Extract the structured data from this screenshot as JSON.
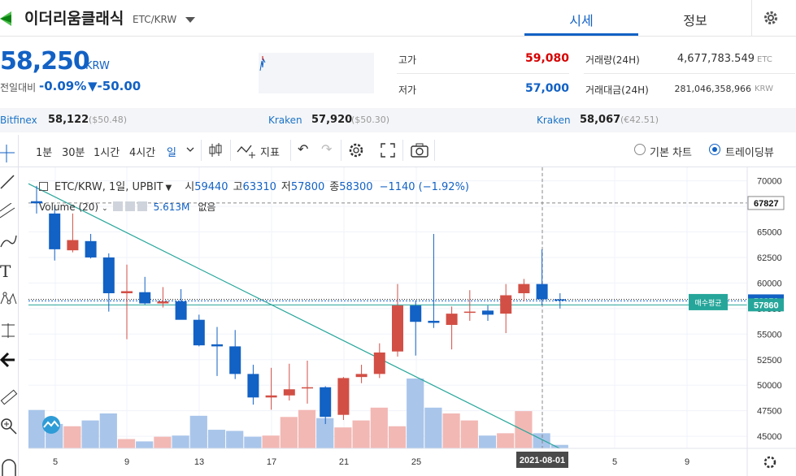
{
  "header": {
    "coin_name": "이더리움클래식",
    "pair": "ETC/KRW",
    "tabs": [
      {
        "label": "시세"
      },
      {
        "label": "정보"
      }
    ]
  },
  "ticker": {
    "price": "58,250",
    "unit": "KRW",
    "change_label": "전일대비",
    "change_rate": "-0.09%",
    "change_amount": "▼-50.00",
    "high_label": "고가",
    "high_value": "59,080",
    "low_label": "저가",
    "low_value": "57,000",
    "volume_label": "거래량(24H)",
    "volume_value": "4,677,783.549",
    "volume_unit": "ETC",
    "amount_label": "거래대금(24H)",
    "amount_value": "281,046,358,966",
    "amount_unit": "KRW"
  },
  "exchanges": [
    {
      "name": "Bitfinex",
      "value": "58,122",
      "usd": "($50.48)"
    },
    {
      "name": "Kraken",
      "value": "57,920",
      "usd": "($50.30)"
    },
    {
      "name": "Kraken",
      "value": "58,067",
      "usd": "(€42.51)"
    }
  ],
  "toolbar": {
    "intervals": [
      "1분",
      "30분",
      "1시간",
      "4시간",
      "일"
    ],
    "indicator_label": "지표",
    "basic_chart": "기본 차트",
    "trading_view": "트레이딩뷰"
  },
  "legend": {
    "title": "ETC/KRW, 1일, UPBIT",
    "open_label": "시",
    "open": "59440",
    "high_label": "고",
    "high": "63310",
    "low_label": "저",
    "low": "57800",
    "close_label": "종",
    "close": "58300",
    "change": "−1140 (−1.92%)",
    "volume_label": "Volume (20)",
    "volume_value": "5.613M",
    "volume_extra": "없음"
  },
  "chart_data": {
    "type": "candlestick",
    "x_labels": [
      "5",
      "9",
      "13",
      "17",
      "21",
      "25",
      "2021-08-01",
      "5",
      "9"
    ],
    "y_ticks": [
      45000,
      47500,
      50000,
      52500,
      55000,
      57500,
      60000,
      62500,
      65000,
      67500,
      70000
    ],
    "ylim": [
      43500,
      71000
    ],
    "price_tags": [
      {
        "value": "67827",
        "color": "#ffffff"
      },
      {
        "value": "58250",
        "color": "#1261c4"
      },
      {
        "value": "57860",
        "color": "#26a69a"
      }
    ],
    "avg_label": "매수평균",
    "candles": [
      {
        "o": 68000,
        "h": 69500,
        "l": 66800,
        "c": 67800
      },
      {
        "o": 66800,
        "h": 67500,
        "l": 62200,
        "c": 63300
      },
      {
        "o": 63200,
        "h": 66800,
        "l": 63000,
        "c": 64200
      },
      {
        "o": 64100,
        "h": 64800,
        "l": 62400,
        "c": 62500
      },
      {
        "o": 62500,
        "h": 62900,
        "l": 57200,
        "c": 59000
      },
      {
        "o": 59000,
        "h": 61800,
        "l": 54500,
        "c": 59200
      },
      {
        "o": 59100,
        "h": 60600,
        "l": 57900,
        "c": 58000
      },
      {
        "o": 58000,
        "h": 59600,
        "l": 57600,
        "c": 58200
      },
      {
        "o": 58200,
        "h": 59400,
        "l": 56500,
        "c": 56400
      },
      {
        "o": 56400,
        "h": 56900,
        "l": 53800,
        "c": 53900
      },
      {
        "o": 54000,
        "h": 55700,
        "l": 50900,
        "c": 53800
      },
      {
        "o": 53800,
        "h": 55400,
        "l": 50600,
        "c": 51100
      },
      {
        "o": 51100,
        "h": 52000,
        "l": 48100,
        "c": 48800
      },
      {
        "o": 48800,
        "h": 51700,
        "l": 47600,
        "c": 49000
      },
      {
        "o": 49000,
        "h": 52100,
        "l": 48500,
        "c": 49600
      },
      {
        "o": 49700,
        "h": 52400,
        "l": 48200,
        "c": 49800
      },
      {
        "o": 49800,
        "h": 49900,
        "l": 46200,
        "c": 46900
      },
      {
        "o": 47100,
        "h": 50800,
        "l": 46600,
        "c": 50700
      },
      {
        "o": 50800,
        "h": 52000,
        "l": 50200,
        "c": 51100
      },
      {
        "o": 51100,
        "h": 54100,
        "l": 50700,
        "c": 53200
      },
      {
        "o": 53300,
        "h": 59900,
        "l": 52800,
        "c": 57800
      },
      {
        "o": 57800,
        "h": 58300,
        "l": 52900,
        "c": 56200
      },
      {
        "o": 56300,
        "h": 64800,
        "l": 55600,
        "c": 56100
      },
      {
        "o": 55900,
        "h": 57700,
        "l": 53500,
        "c": 57000
      },
      {
        "o": 57100,
        "h": 59300,
        "l": 56300,
        "c": 57200
      },
      {
        "o": 57300,
        "h": 57800,
        "l": 56300,
        "c": 56900
      },
      {
        "o": 57000,
        "h": 59900,
        "l": 55100,
        "c": 58800
      },
      {
        "o": 59000,
        "h": 60400,
        "l": 58200,
        "c": 59900
      },
      {
        "o": 59900,
        "h": 63300,
        "l": 57800,
        "c": 58400
      },
      {
        "o": 58400,
        "h": 59000,
        "l": 57500,
        "c": 58300
      }
    ],
    "volumes": [
      3.3,
      2.1,
      1.9,
      2.4,
      3.0,
      0.8,
      0.6,
      1.0,
      1.1,
      2.8,
      1.6,
      1.5,
      1.0,
      1.1,
      2.7,
      3.3,
      2.6,
      1.8,
      2.4,
      3.5,
      1.9,
      6.0,
      3.5,
      3.0,
      2.4,
      1.1,
      1.3,
      3.2,
      1.3,
      0.3
    ],
    "trend_line": {
      "start": {
        "index": -1,
        "price": 70200
      },
      "end": {
        "index": 29,
        "price": 43800
      }
    }
  }
}
